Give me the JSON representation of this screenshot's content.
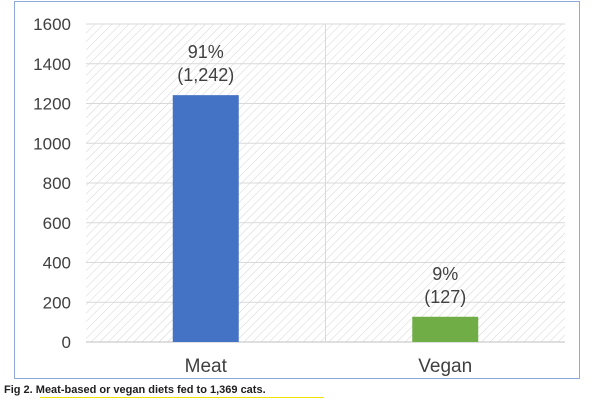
{
  "caption": "Fig 2. Meat-based or vegan diets fed to 1,369 cats.",
  "chart_data": {
    "type": "bar",
    "categories": [
      "Meat",
      "Vegan"
    ],
    "values": [
      1242,
      127
    ],
    "data_labels": [
      {
        "percent": "91%",
        "count": "(1,242)"
      },
      {
        "percent": "9%",
        "count": "(127)"
      }
    ],
    "colors": [
      "#4472c4",
      "#70ad47"
    ],
    "ylim": [
      0,
      1600
    ],
    "yticks": [
      "0",
      "200",
      "400",
      "600",
      "800",
      "1000",
      "1200",
      "1400",
      "1600"
    ],
    "title": "",
    "xlabel": "",
    "ylabel": "",
    "grid": true,
    "plot_background": "hatched"
  }
}
